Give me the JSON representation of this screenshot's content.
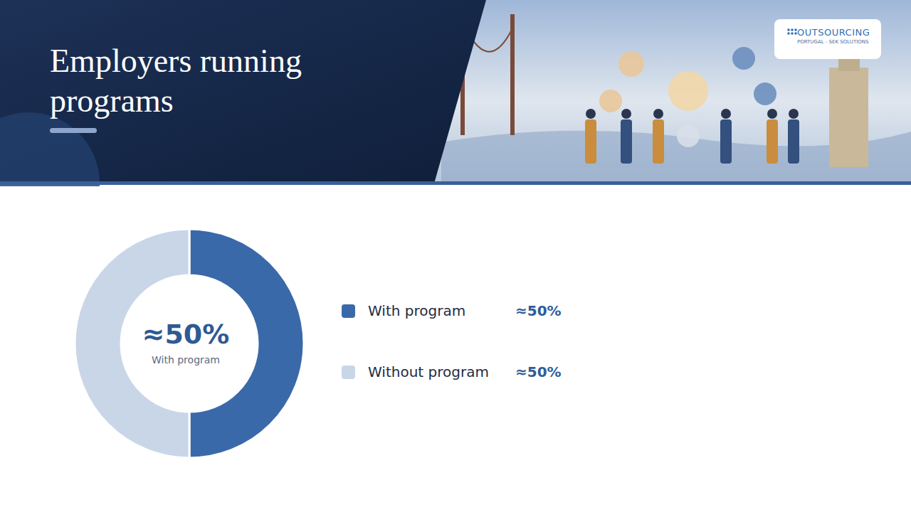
{
  "logo": [
    "OUTSOURCING",
    "PORTUGAL - SEK SOLUTIONS"
  ],
  "chart_data": {
    "type": "pie",
    "title": "Employers running programs",
    "categories": [
      "With program",
      "Without program"
    ],
    "values": [
      50,
      50
    ],
    "value_labels": [
      "≈50%",
      "≈50%"
    ],
    "colors": [
      "#3a69aa",
      "#c9d6e8"
    ],
    "center_labels": [
      "≈50%",
      "With program"
    ]
  }
}
